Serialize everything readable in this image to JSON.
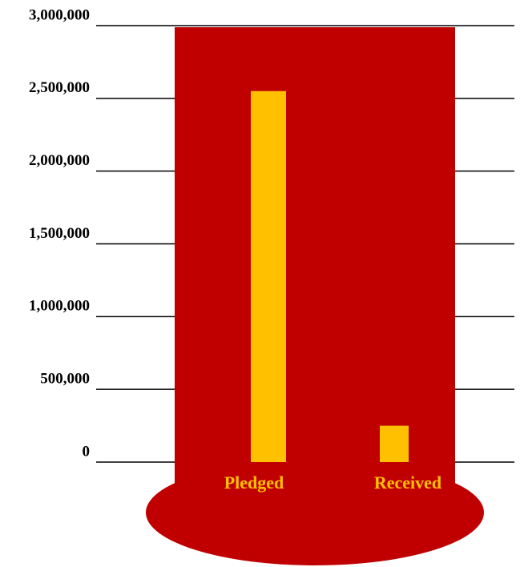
{
  "chart_data": {
    "type": "bar",
    "categories": [
      "Pledged",
      "Received"
    ],
    "values": [
      2550000,
      250000
    ],
    "color": "#ffc000",
    "background_color": "#c00000",
    "ylim": [
      0,
      3000000
    ],
    "yticks": [
      {
        "value": 0,
        "label": "0"
      },
      {
        "value": 500000,
        "label": "500,000"
      },
      {
        "value": 1000000,
        "label": "1,000,000"
      },
      {
        "value": 1500000,
        "label": "1,500,000"
      },
      {
        "value": 2000000,
        "label": "2,000,000"
      },
      {
        "value": 2500000,
        "label": "2,500,000"
      },
      {
        "value": 3000000,
        "label": "3,000,000"
      }
    ],
    "grid": true
  }
}
